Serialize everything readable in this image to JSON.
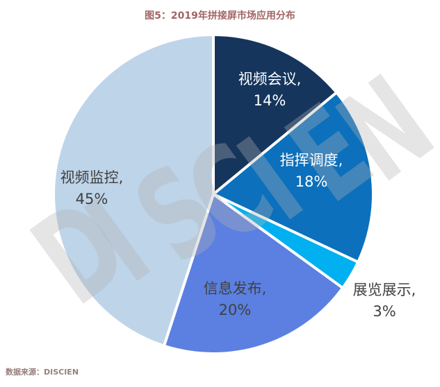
{
  "title": "图5：2019年拼接屏市场应用分布",
  "chart_data": {
    "type": "pie",
    "title": "图5：2019年拼接屏市场应用分布",
    "unit": "%",
    "start_angle_deg": 0,
    "direction": "clockwise",
    "legend": "none",
    "label_format": "{label}, {value}%",
    "slices": [
      {
        "label": "视频会议",
        "value": 14,
        "color": "#15355C",
        "text_color": "#FFFFFF"
      },
      {
        "label": "指挥调度",
        "value": 18,
        "color": "#0C70BC",
        "text_color": "#FFFFFF"
      },
      {
        "label": "展览展示",
        "value": 3,
        "color": "#00B0F0",
        "text_color": "#404040"
      },
      {
        "label": "信息发布",
        "value": 20,
        "color": "#5B80E1",
        "text_color": "#404040"
      },
      {
        "label": "视频监控",
        "value": 45,
        "color": "#BED4E9",
        "text_color": "#404040"
      }
    ]
  },
  "watermark": {
    "text": "DISCIEN"
  },
  "source": {
    "text": "数据来源：DISCIEN"
  }
}
